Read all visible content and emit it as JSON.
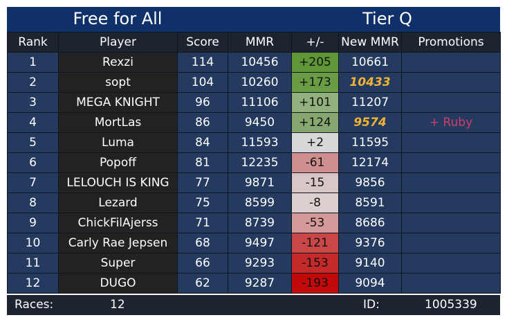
{
  "header": {
    "mode": "Free for All",
    "tier": "Tier Q"
  },
  "columns": [
    "Rank",
    "Player",
    "Score",
    "MMR",
    "+/-",
    "New MMR",
    "Promotions"
  ],
  "colors": {
    "title_bg": "#10306a",
    "header_bg": "#1d2430",
    "row_bg": "#253a5f",
    "player_bg": "#222222",
    "highlight": "#f2b234",
    "promotion": "#d23c6c"
  },
  "rows": [
    {
      "rank": "1",
      "player": "Rexzi",
      "score": "114",
      "mmr": "10456",
      "delta": "+205",
      "delta_color": "#5e9638",
      "new_mmr": "10661",
      "highlight": false,
      "promotion": ""
    },
    {
      "rank": "2",
      "player": "sopt",
      "score": "104",
      "mmr": "10260",
      "delta": "+173",
      "delta_color": "#6a9b45",
      "new_mmr": "10433",
      "highlight": true,
      "promotion": ""
    },
    {
      "rank": "3",
      "player": "MEGA KNIGHT",
      "score": "96",
      "mmr": "11106",
      "delta": "+101",
      "delta_color": "#93b07f",
      "new_mmr": "11207",
      "highlight": false,
      "promotion": ""
    },
    {
      "rank": "4",
      "player": "MortLas",
      "score": "86",
      "mmr": "9450",
      "delta": "+124",
      "delta_color": "#86a870",
      "new_mmr": "9574",
      "highlight": true,
      "promotion": "+ Ruby"
    },
    {
      "rank": "5",
      "player": "Luma",
      "score": "84",
      "mmr": "11593",
      "delta": "+2",
      "delta_color": "#d8d8d8",
      "new_mmr": "11595",
      "highlight": false,
      "promotion": ""
    },
    {
      "rank": "6",
      "player": "Popoff",
      "score": "81",
      "mmr": "12235",
      "delta": "-61",
      "delta_color": "#d08f8f",
      "new_mmr": "12174",
      "highlight": false,
      "promotion": ""
    },
    {
      "rank": "7",
      "player": "LELOUCH IS KING",
      "score": "77",
      "mmr": "9871",
      "delta": "-15",
      "delta_color": "#d9c7c7",
      "new_mmr": "9856",
      "highlight": false,
      "promotion": ""
    },
    {
      "rank": "8",
      "player": "Lezard",
      "score": "75",
      "mmr": "8599",
      "delta": "-8",
      "delta_color": "#dccfcf",
      "new_mmr": "8591",
      "highlight": false,
      "promotion": ""
    },
    {
      "rank": "9",
      "player": "ChickFilAjerss",
      "score": "71",
      "mmr": "8739",
      "delta": "-53",
      "delta_color": "#d49a9a",
      "new_mmr": "8686",
      "highlight": false,
      "promotion": ""
    },
    {
      "rank": "10",
      "player": "Carly Rae Jepsen",
      "score": "68",
      "mmr": "9497",
      "delta": "-121",
      "delta_color": "#c94747",
      "new_mmr": "9376",
      "highlight": false,
      "promotion": ""
    },
    {
      "rank": "11",
      "player": "Super",
      "score": "66",
      "mmr": "9293",
      "delta": "-153",
      "delta_color": "#c52a2a",
      "new_mmr": "9140",
      "highlight": false,
      "promotion": ""
    },
    {
      "rank": "12",
      "player": "DUGO",
      "score": "62",
      "mmr": "9287",
      "delta": "-193",
      "delta_color": "#c20a0a",
      "new_mmr": "9094",
      "highlight": false,
      "promotion": ""
    }
  ],
  "footer": {
    "races_label": "Races:",
    "races_value": "12",
    "id_label": "ID:",
    "id_value": "1005339"
  }
}
